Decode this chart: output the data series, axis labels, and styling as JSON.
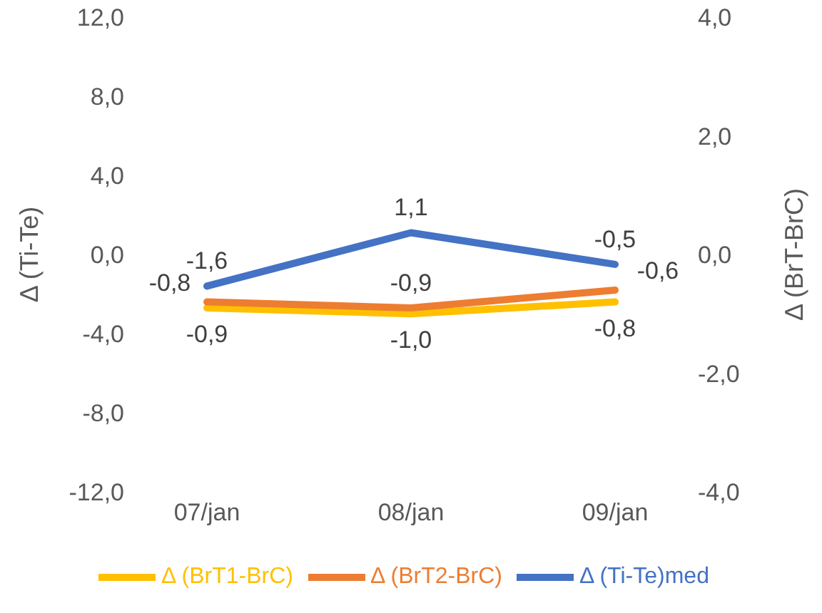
{
  "chart_data": {
    "type": "line",
    "ylabel": "Δ (Ti-Te)",
    "y2label": "Δ (BrT-BrC)",
    "categories": [
      "07/jan",
      "08/jan",
      "09/jan"
    ],
    "ylim": [
      -12,
      12
    ],
    "yticks": [
      {
        "value": -12,
        "label": "-12,0"
      },
      {
        "value": -8,
        "label": "-8,0"
      },
      {
        "value": -4,
        "label": "-4,0"
      },
      {
        "value": 0,
        "label": "0,0"
      },
      {
        "value": 4,
        "label": "4,0"
      },
      {
        "value": 8,
        "label": "8,0"
      },
      {
        "value": 12,
        "label": "12,0"
      }
    ],
    "y2lim": [
      -4,
      4
    ],
    "y2ticks": [
      {
        "value": -4,
        "label": "-4,0"
      },
      {
        "value": -2,
        "label": "-2,0"
      },
      {
        "value": 0,
        "label": "0,0"
      },
      {
        "value": 2,
        "label": "2,0"
      },
      {
        "value": 4,
        "label": "4,0"
      }
    ],
    "series": [
      {
        "name": "Δ (Ti-Te)med",
        "color": "#4472c4",
        "values": [
          -1.6,
          1.1,
          -0.5
        ],
        "value_labels": [
          "-1,6",
          "1,1",
          "-0,5"
        ]
      },
      {
        "name": "Δ (BrT1-BrC)",
        "color": "#ffc000",
        "axis": "y2",
        "values": [
          -0.9,
          -1.0,
          -0.8
        ],
        "value_labels": [
          "-0,9",
          "-1,0",
          "-0,8"
        ]
      },
      {
        "name": "Δ (BrT2-BrC)",
        "color": "#ed7d31",
        "axis": "y2",
        "values": [
          -0.8,
          -0.9,
          -0.6
        ],
        "value_labels": [
          "-0,8",
          "-0,9",
          "-0,6"
        ]
      }
    ],
    "grid": false,
    "legend": "bottom",
    "marker": "none",
    "line_style": "solid"
  }
}
